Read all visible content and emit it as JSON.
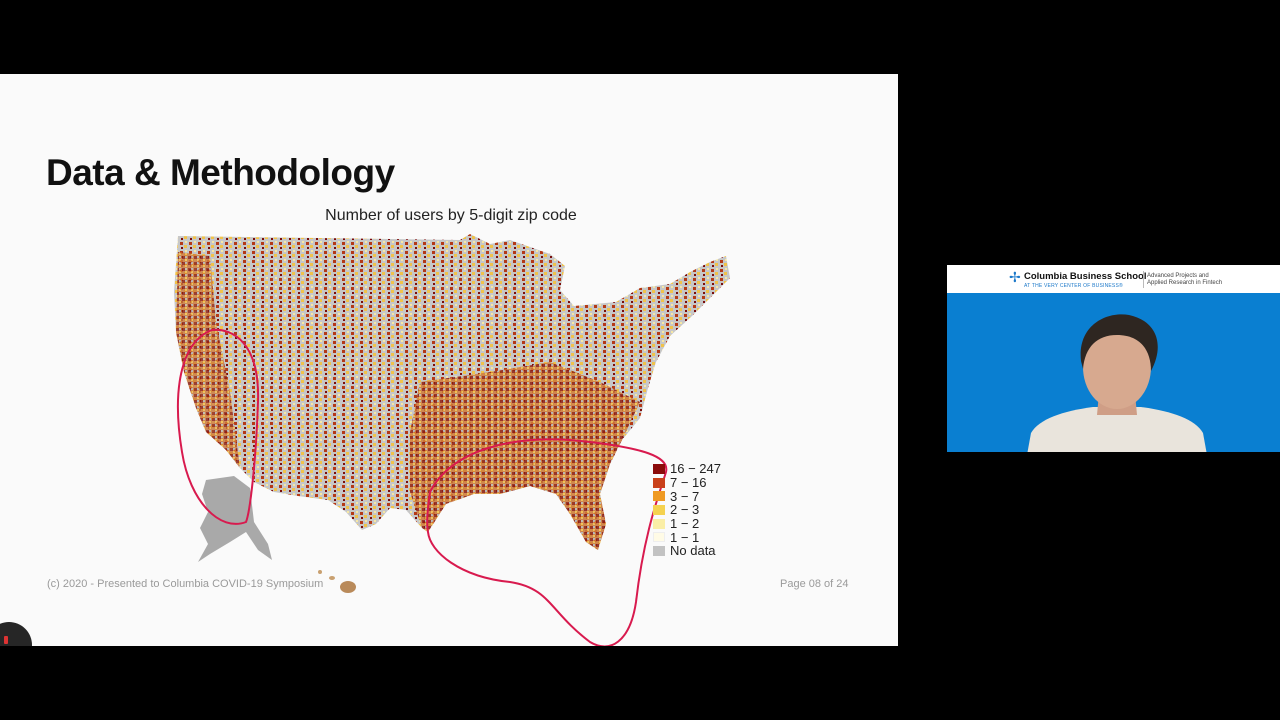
{
  "slide": {
    "title": "Data & Methodology",
    "map_title": "Number of users by 5-digit zip code",
    "legend": [
      {
        "label": "16 − 247",
        "color": "#8b0b0b"
      },
      {
        "label": "7 − 16",
        "color": "#c9401a"
      },
      {
        "label": "3 − 7",
        "color": "#ef9a23"
      },
      {
        "label": "2 − 3",
        "color": "#f5d24f"
      },
      {
        "label": "1 − 2",
        "color": "#faeea6"
      },
      {
        "label": "1 − 1",
        "color": "#fffbe6"
      },
      {
        "label": "No data",
        "color": "#c2c2c2"
      }
    ],
    "footer_left": "(c) 2020 - Presented to Columbia COVID-19 Symposium",
    "footer_right": "Page 08 of 24"
  },
  "video": {
    "school_name": "Columbia Business School",
    "tagline": "AT THE VERY CENTER OF BUSINESS®",
    "program_line1": "Advanced Projects and",
    "program_line2": "Applied Research in Fintech",
    "icon": "crown-icon"
  },
  "annotation_color": "#d81a4e"
}
